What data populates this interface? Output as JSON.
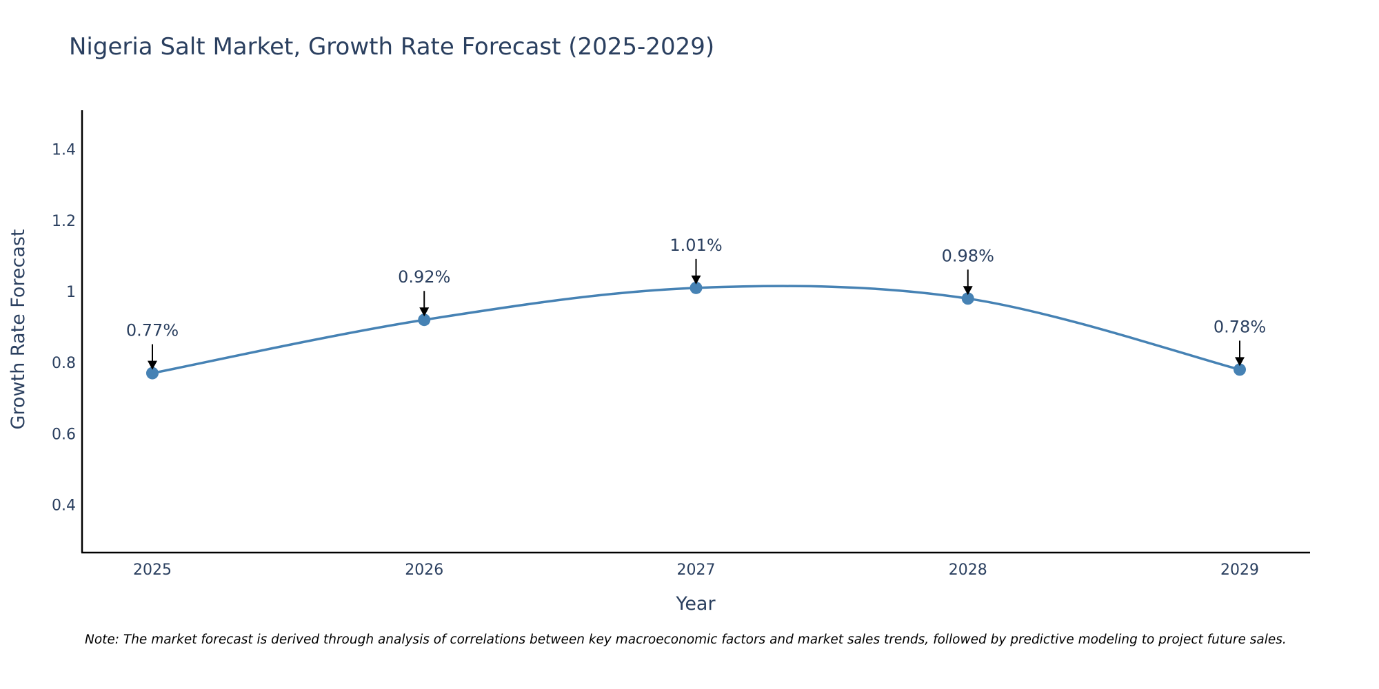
{
  "chart_data": {
    "type": "line",
    "title": "Nigeria Salt Market, Growth Rate Forecast (2025-2029)",
    "xlabel": "Year",
    "ylabel": "Growth Rate Forecast",
    "categories": [
      "2025",
      "2026",
      "2027",
      "2028",
      "2029"
    ],
    "values": [
      0.77,
      0.92,
      1.01,
      0.98,
      0.78
    ],
    "data_labels": [
      "0.77%",
      "0.92%",
      "1.01%",
      "0.98%",
      "0.78%"
    ],
    "ylim": [
      0.265,
      1.51
    ],
    "yticks": [
      0.4,
      0.6,
      0.8,
      1,
      1.2,
      1.4
    ],
    "ytick_labels": [
      "0.4",
      "0.6",
      "0.8",
      "1",
      "1.2",
      "1.4"
    ],
    "grid": false,
    "line_shape": "spline",
    "colors": {
      "line": "#4682b4",
      "marker": "#4682b4",
      "arrow": "#000000",
      "axis": "#000000"
    }
  },
  "note": "Note: The market forecast is derived through analysis of correlations between key macroeconomic factors and market sales trends, followed by predictive modeling to project future sales."
}
